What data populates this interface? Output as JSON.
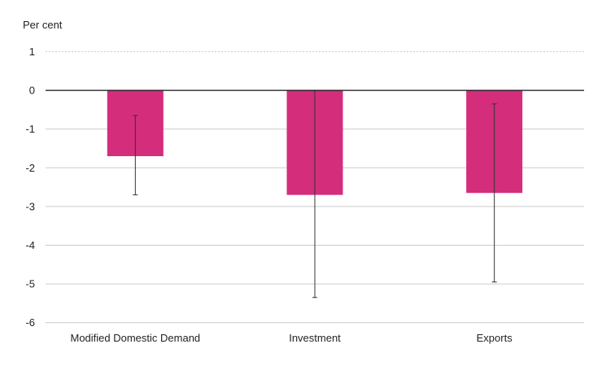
{
  "chart_data": {
    "type": "bar",
    "ylabel": "Per cent",
    "categories": [
      "Modified Domestic Demand",
      "Investment",
      "Exports"
    ],
    "values": [
      -1.7,
      -2.7,
      -2.65
    ],
    "error_bars": [
      {
        "low": -2.7,
        "high": -0.65
      },
      {
        "low": -5.35,
        "high": 0.0
      },
      {
        "low": -4.95,
        "high": -0.35
      }
    ],
    "ylim": [
      -6,
      1
    ],
    "yticks": [
      "1",
      "0",
      "-1",
      "-2",
      "-3",
      "-4",
      "-5",
      "-6"
    ],
    "grid": true,
    "bar_color": "#d42d7c",
    "error_bar_color": "#333333"
  }
}
